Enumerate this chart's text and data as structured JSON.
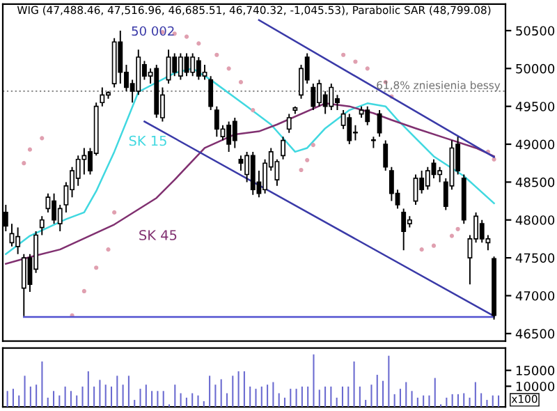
{
  "chart_data": [
    {
      "type": "candlestick",
      "title": "WIG (47,488.46, 47,516.96, 46,685.51, 46,740.32, -1,045.53), Parabolic SAR (48,799.08)",
      "categories": [
        null,
        null,
        null,
        null,
        null,
        null,
        null,
        null,
        null,
        null,
        null,
        null,
        null,
        null,
        null,
        null,
        null,
        null,
        null,
        null,
        null,
        null,
        null,
        null,
        null,
        null,
        null,
        null,
        null,
        null,
        null,
        null,
        null,
        null,
        null,
        null,
        null,
        null,
        null,
        null,
        null,
        null,
        null,
        null,
        null,
        null,
        null,
        null,
        null,
        null,
        null,
        null,
        null,
        null,
        null,
        null,
        null,
        null,
        null,
        null,
        null,
        null,
        null,
        null,
        null,
        null,
        null,
        null,
        null,
        null,
        null,
        null,
        null,
        null,
        null,
        null,
        null,
        null,
        null,
        null,
        null,
        null
      ],
      "ohlc": [
        [
          48100,
          48200,
          47850,
          47920
        ],
        [
          47700,
          47950,
          47650,
          47820
        ],
        [
          47650,
          47900,
          47550,
          47780
        ],
        [
          47100,
          47550,
          46730,
          47500
        ],
        [
          47500,
          47550,
          47050,
          47150
        ],
        [
          47350,
          47850,
          47300,
          47800
        ],
        [
          47900,
          48050,
          47800,
          48000
        ],
        [
          48150,
          48350,
          48100,
          48300
        ],
        [
          48250,
          48350,
          47950,
          48000
        ],
        [
          47950,
          48200,
          47850,
          48150
        ],
        [
          48200,
          48500,
          48100,
          48450
        ],
        [
          48400,
          48700,
          48300,
          48650
        ],
        [
          48550,
          48850,
          48450,
          48800
        ],
        [
          48800,
          48950,
          48600,
          48850
        ],
        [
          48900,
          48950,
          48600,
          48650
        ],
        [
          48880,
          49550,
          48850,
          49500
        ],
        [
          49550,
          49750,
          49500,
          49650
        ],
        [
          49650,
          49700,
          49600,
          49680
        ],
        [
          49800,
          50400,
          49750,
          50350
        ],
        [
          50350,
          50500,
          49800,
          49950
        ],
        [
          49950,
          50050,
          49700,
          49750
        ],
        [
          49800,
          49850,
          49550,
          49700
        ],
        [
          49700,
          50250,
          49650,
          50150
        ],
        [
          50050,
          50100,
          49850,
          49900
        ],
        [
          49900,
          50000,
          49800,
          49950
        ],
        [
          50000,
          50050,
          49350,
          49400
        ],
        [
          49350,
          49750,
          49300,
          49650
        ],
        [
          49850,
          50250,
          49800,
          50150
        ],
        [
          50150,
          50200,
          49900,
          49950
        ],
        [
          49900,
          50200,
          49850,
          50150
        ],
        [
          50150,
          50200,
          49900,
          49950
        ],
        [
          49950,
          50200,
          49900,
          50150
        ],
        [
          50100,
          50150,
          49850,
          49900
        ],
        [
          49900,
          50050,
          49850,
          49950
        ],
        [
          49850,
          49900,
          49450,
          49500
        ],
        [
          49450,
          49500,
          49100,
          49200
        ],
        [
          49100,
          49250,
          49050,
          49200
        ],
        [
          49250,
          49300,
          48900,
          49000
        ],
        [
          49300,
          49350,
          48950,
          49050
        ],
        [
          48800,
          48850,
          48650,
          48750
        ],
        [
          48600,
          48900,
          48500,
          48850
        ],
        [
          48850,
          48900,
          48330,
          48400
        ],
        [
          48500,
          48650,
          48300,
          48350
        ],
        [
          48400,
          48800,
          48350,
          48750
        ],
        [
          48700,
          48950,
          48650,
          48900
        ],
        [
          48530,
          48800,
          48450,
          48770
        ],
        [
          48850,
          49100,
          48800,
          49050
        ],
        [
          49200,
          49400,
          49150,
          49350
        ],
        [
          49450,
          49500,
          49400,
          49480
        ],
        [
          49650,
          50050,
          49600,
          50000
        ],
        [
          50150,
          50200,
          49800,
          49850
        ],
        [
          49750,
          49800,
          49450,
          49500
        ],
        [
          49550,
          49850,
          49500,
          49800
        ],
        [
          49650,
          49700,
          49400,
          49500
        ],
        [
          49500,
          49800,
          49450,
          49750
        ],
        [
          49600,
          49650,
          49450,
          49550
        ],
        [
          49250,
          49450,
          49200,
          49400
        ],
        [
          49350,
          49400,
          49000,
          49050
        ],
        [
          49150,
          49250,
          49050,
          49150
        ],
        [
          49400,
          49500,
          49350,
          49450
        ],
        [
          49450,
          49500,
          49250,
          49300
        ],
        [
          49050,
          49100,
          48950,
          49050
        ],
        [
          49400,
          49450,
          49100,
          49150
        ],
        [
          49000,
          49050,
          48650,
          48700
        ],
        [
          48650,
          48700,
          48250,
          48350
        ],
        [
          48350,
          48400,
          48150,
          48200
        ],
        [
          48100,
          48150,
          47600,
          47850
        ],
        [
          47950,
          48050,
          47900,
          48000
        ],
        [
          48250,
          48600,
          48200,
          48550
        ],
        [
          48550,
          48650,
          48350,
          48400
        ],
        [
          48450,
          48700,
          48400,
          48650
        ],
        [
          48750,
          48800,
          48550,
          48600
        ],
        [
          48600,
          48700,
          48500,
          48650
        ],
        [
          48500,
          48550,
          48130,
          48180
        ],
        [
          48450,
          49050,
          48400,
          48950
        ],
        [
          49000,
          49100,
          48600,
          48650
        ],
        [
          48550,
          48600,
          47950,
          48000
        ],
        [
          47500,
          47800,
          47150,
          47750
        ],
        [
          47750,
          48100,
          47700,
          48050
        ],
        [
          47950,
          48000,
          47700,
          47750
        ],
        [
          47700,
          47800,
          47600,
          47750
        ],
        [
          47488.46,
          47516.96,
          46685.51,
          46740.32
        ]
      ],
      "series": [
        {
          "name": "SK 15",
          "type": "line",
          "color": "#40d8e0",
          "line_style": "solid",
          "marker": "none",
          "values": [
            47550,
            null,
            null,
            null,
            47790,
            null,
            null,
            null,
            null,
            null,
            48010,
            null,
            null,
            48100,
            null,
            48380,
            null,
            null,
            48900,
            null,
            null,
            null,
            49690,
            null,
            null,
            null,
            null,
            null,
            49940,
            null,
            null,
            50000,
            null,
            null,
            49850,
            null,
            null,
            null,
            null,
            null,
            49500,
            null,
            null,
            null,
            49260,
            null,
            null,
            null,
            48900,
            null,
            48950,
            null,
            null,
            49210,
            null,
            null,
            null,
            49450,
            null,
            null,
            49540,
            null,
            null,
            49500,
            null,
            49320,
            null,
            null,
            49080,
            null,
            null,
            48840,
            null,
            null,
            null,
            null,
            48580,
            null,
            null,
            null,
            null,
            48220
          ]
        },
        {
          "name": "SK 45",
          "type": "line",
          "color": "#803070",
          "line_style": "solid",
          "marker": "none",
          "values": [
            47420,
            null,
            null,
            null,
            47510,
            null,
            null,
            null,
            null,
            47610,
            null,
            null,
            null,
            null,
            null,
            null,
            null,
            null,
            47940,
            null,
            null,
            null,
            null,
            null,
            null,
            48290,
            null,
            null,
            48530,
            null,
            null,
            null,
            null,
            48950,
            null,
            null,
            null,
            null,
            49130,
            null,
            null,
            null,
            49170,
            null,
            null,
            49260,
            null,
            null,
            null,
            null,
            null,
            null,
            null,
            49540,
            null,
            null,
            null,
            49500,
            null,
            null,
            null,
            49410,
            null,
            null,
            49320,
            null,
            null,
            null,
            49210,
            null,
            null,
            null,
            null,
            49080,
            null,
            null,
            null,
            null,
            48950,
            null,
            null,
            48840
          ]
        },
        {
          "type": "scatter",
          "color": "#e0a0b0",
          "marker": "circle",
          "values": [
            null,
            null,
            null,
            48750,
            48930,
            null,
            49080,
            null,
            null,
            null,
            null,
            46740,
            null,
            47060,
            null,
            47370,
            null,
            47610,
            48100,
            null,
            null,
            null,
            null,
            null,
            null,
            null,
            50480,
            null,
            50460,
            null,
            50420,
            null,
            50330,
            null,
            null,
            50180,
            null,
            50000,
            null,
            49820,
            null,
            49450,
            null,
            null,
            null,
            null,
            null,
            null,
            null,
            48660,
            48790,
            48990,
            null,
            null,
            null,
            null,
            50180,
            null,
            50090,
            null,
            50000,
            null,
            null,
            49820,
            49630,
            null,
            null,
            null,
            null,
            47610,
            null,
            47660,
            null,
            null,
            47790,
            47880,
            null,
            null,
            null,
            null,
            48900,
            48800
          ]
        },
        {
          "type": "line",
          "color": "#3a3aa8",
          "line_style": "solid",
          "marker": "none",
          "values": [
            null,
            null,
            null,
            null,
            null,
            null,
            null,
            null,
            null,
            null,
            null,
            null,
            null,
            null,
            null,
            null,
            null,
            null,
            null,
            null,
            null,
            null,
            null,
            null,
            null,
            null,
            null,
            null,
            null,
            null,
            null,
            null,
            null,
            null,
            null,
            null,
            null,
            null,
            null,
            null,
            null,
            null,
            50640,
            null,
            null,
            null,
            null,
            null,
            null,
            null,
            null,
            null,
            null,
            null,
            null,
            null,
            null,
            null,
            null,
            null,
            null,
            null,
            null,
            null,
            null,
            null,
            null,
            null,
            null,
            null,
            null,
            null,
            null,
            null,
            null,
            null,
            null,
            null,
            null,
            null,
            null,
            48830
          ]
        },
        {
          "type": "line",
          "color": "#3a3aa8",
          "line_style": "solid",
          "marker": "none",
          "values": [
            null,
            null,
            null,
            null,
            null,
            null,
            null,
            null,
            null,
            null,
            null,
            null,
            null,
            null,
            null,
            null,
            null,
            null,
            null,
            null,
            null,
            null,
            null,
            49300,
            null,
            null,
            null,
            null,
            null,
            null,
            null,
            null,
            null,
            null,
            null,
            null,
            null,
            null,
            null,
            null,
            null,
            null,
            null,
            null,
            null,
            null,
            null,
            null,
            null,
            null,
            null,
            null,
            null,
            null,
            null,
            null,
            null,
            null,
            null,
            null,
            null,
            null,
            null,
            null,
            null,
            null,
            null,
            null,
            null,
            null,
            null,
            null,
            null,
            null,
            null,
            null,
            null,
            null,
            null,
            null,
            null,
            46730
          ]
        },
        {
          "type": "line",
          "color": "#5050d0",
          "line_style": "solid",
          "marker": "none",
          "values": [
            null,
            null,
            null,
            46720,
            null,
            null,
            null,
            null,
            null,
            null,
            null,
            null,
            null,
            null,
            null,
            null,
            null,
            null,
            null,
            null,
            null,
            null,
            null,
            null,
            null,
            null,
            null,
            null,
            null,
            null,
            null,
            null,
            null,
            null,
            null,
            null,
            null,
            null,
            null,
            null,
            null,
            null,
            null,
            null,
            null,
            null,
            null,
            null,
            null,
            null,
            null,
            null,
            null,
            null,
            null,
            null,
            null,
            null,
            null,
            null,
            null,
            null,
            null,
            null,
            null,
            null,
            null,
            null,
            null,
            null,
            null,
            null,
            null,
            null,
            null,
            null,
            null,
            null,
            null,
            null,
            null,
            46720
          ]
        }
      ],
      "ylim": [
        46400,
        50850
      ],
      "yticks": [
        46500,
        47000,
        47500,
        48000,
        48500,
        49000,
        49500,
        50000,
        50500
      ],
      "ref_lines": [
        {
          "axis": "y",
          "value": 49700,
          "label": "61,8% zniesienia bessy",
          "color": "#909090",
          "line_style": "dotted"
        }
      ],
      "annotations": [
        "50 002"
      ],
      "tick_labels": "y"
    },
    {
      "type": "bar",
      "categories": [
        null,
        null,
        null,
        null,
        null,
        null,
        null,
        null,
        null,
        null,
        null,
        null,
        null,
        null,
        null,
        null,
        null,
        null,
        null,
        null,
        null,
        null,
        null,
        null,
        null,
        null,
        null,
        null,
        null,
        null,
        null,
        null,
        null,
        null,
        null,
        null,
        null,
        null,
        null,
        null,
        null,
        null,
        null,
        null,
        null,
        null,
        null,
        null,
        null,
        null,
        null,
        null,
        null,
        null,
        null,
        null,
        null,
        null,
        null,
        null,
        null,
        null,
        null,
        null,
        null,
        null,
        null,
        null,
        null,
        null,
        null,
        null,
        null,
        null,
        null,
        null,
        null,
        null,
        null,
        null,
        null,
        null,
        null,
        null,
        null,
        null
      ],
      "values": [
        8500,
        9200,
        7100,
        13300,
        9900,
        10500,
        17800,
        6400,
        8500,
        7100,
        9900,
        8500,
        7100,
        9900,
        14700,
        9900,
        12000,
        10500,
        9900,
        13300,
        10500,
        13300,
        5700,
        9200,
        10500,
        8500,
        8500,
        8500,
        4300,
        10500,
        7800,
        6400,
        7800,
        7100,
        5300,
        13300,
        10500,
        12200,
        7800,
        13300,
        14700,
        14700,
        9900,
        9200,
        9900,
        10500,
        11300,
        7800,
        6400,
        9200,
        9200,
        9900,
        9900,
        20000,
        8900,
        9900,
        9900,
        6400,
        9900,
        9900,
        17800,
        9900,
        5700,
        10500,
        13600,
        11700,
        19600,
        7500,
        9200,
        11300,
        8500,
        6400,
        7100,
        7100,
        12600,
        4300,
        6400,
        7500,
        7500,
        7800,
        6400,
        11300,
        7800,
        5700,
        7100,
        7100
      ],
      "color": "#6a6ad0",
      "ylim": [
        3500,
        22000
      ],
      "yticks": [
        10000,
        15000
      ],
      "annotations": [
        "x100"
      ],
      "tick_labels": "y"
    }
  ]
}
